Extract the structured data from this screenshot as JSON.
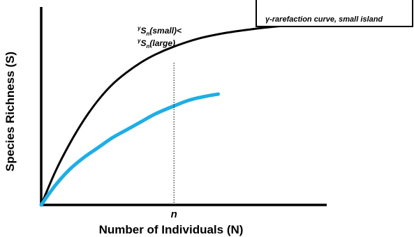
{
  "chart_data": {
    "type": "line",
    "xlabel": "Number of Individuals (N)",
    "ylabel": "Species Richness (S)",
    "xlim": [
      0,
      100
    ],
    "ylim": [
      0,
      100
    ],
    "grid": false,
    "x_ticks_shown": false,
    "y_ticks_shown": false,
    "x_marker": {
      "label": "n",
      "x": 46.5
    },
    "annotation": {
      "lines": [
        {
          "pre": "γ",
          "mid": "S",
          "sub": "n",
          "post": "(small)<"
        },
        {
          "pre": "γ",
          "mid": "S",
          "sub": "n",
          "post": "(large)"
        }
      ]
    },
    "legend": {
      "placement": "top-right",
      "visible_text": "γ-rarefaction curve, small island"
    },
    "series": [
      {
        "color": "#000000",
        "x": [
          0,
          5,
          10,
          15,
          20,
          25,
          30,
          35,
          40,
          46.5,
          55,
          65,
          75,
          85,
          100
        ],
        "y": [
          0,
          17,
          31,
          43,
          53,
          61,
          67,
          72,
          76,
          80,
          84,
          87,
          89,
          90.5,
          92
        ]
      },
      {
        "name": "γ-rarefaction curve, small island",
        "color": "#1eaee6",
        "x": [
          0,
          5,
          10,
          15,
          20,
          25,
          30,
          35,
          40,
          46.5,
          52,
          58,
          62
        ],
        "y": [
          0,
          10,
          18,
          24,
          29,
          34,
          38,
          42,
          46,
          50,
          53,
          55,
          56
        ]
      }
    ]
  }
}
